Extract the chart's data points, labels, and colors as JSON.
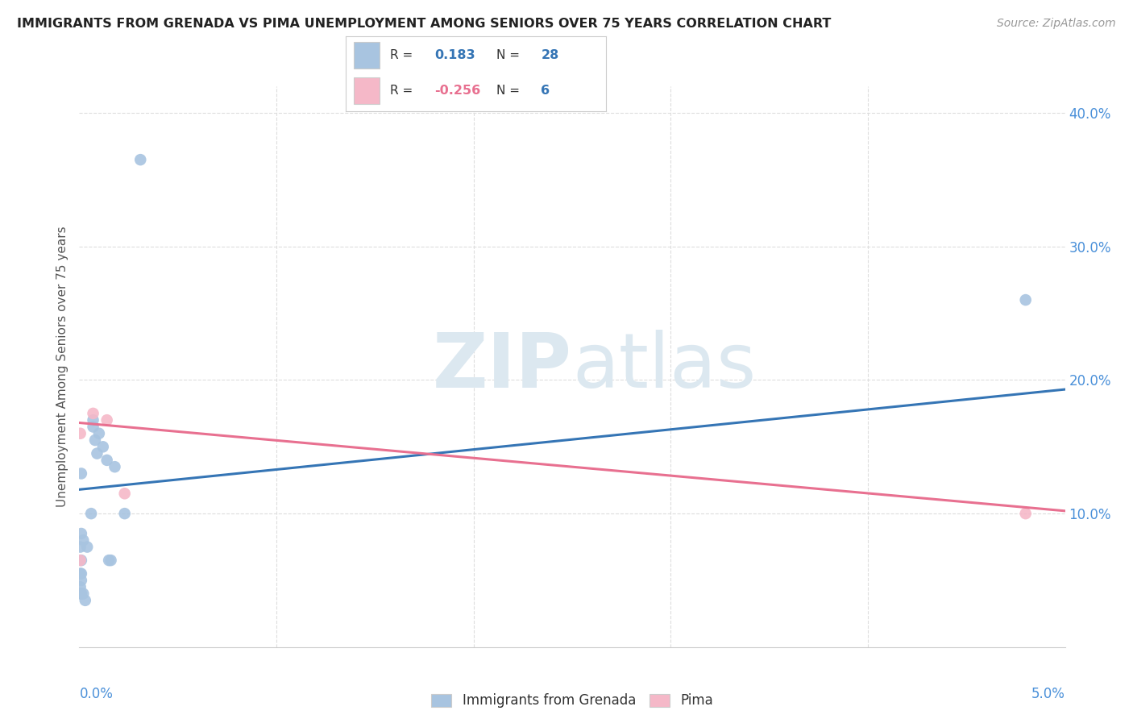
{
  "title": "IMMIGRANTS FROM GRENADA VS PIMA UNEMPLOYMENT AMONG SENIORS OVER 75 YEARS CORRELATION CHART",
  "source": "Source: ZipAtlas.com",
  "ylabel": "Unemployment Among Seniors over 75 years",
  "xlim": [
    0.0,
    0.05
  ],
  "ylim": [
    0.0,
    0.42
  ],
  "background_color": "#ffffff",
  "blue_scatter_x": [
    5e-05,
    5e-05,
    5e-05,
    8e-05,
    0.0001,
    0.0001,
    0.0001,
    0.0001,
    0.0001,
    0.0001,
    0.0002,
    0.0002,
    0.0003,
    0.0004,
    0.0006,
    0.0007,
    0.0007,
    0.0008,
    0.0009,
    0.001,
    0.0012,
    0.0014,
    0.0015,
    0.0016,
    0.0018,
    0.0023,
    0.0031,
    0.048
  ],
  "blue_scatter_y": [
    0.075,
    0.055,
    0.045,
    0.04,
    0.13,
    0.085,
    0.065,
    0.055,
    0.05,
    0.04,
    0.08,
    0.04,
    0.035,
    0.075,
    0.1,
    0.165,
    0.17,
    0.155,
    0.145,
    0.16,
    0.15,
    0.14,
    0.065,
    0.065,
    0.135,
    0.1,
    0.365,
    0.26
  ],
  "pink_scatter_x": [
    5e-05,
    5e-05,
    0.0007,
    0.0014,
    0.0023,
    0.048
  ],
  "pink_scatter_y": [
    0.16,
    0.065,
    0.175,
    0.17,
    0.115,
    0.1
  ],
  "blue_color": "#a8c4e0",
  "blue_line_color": "#3575b5",
  "blue_line_x": [
    0.0,
    0.05
  ],
  "blue_line_y": [
    0.118,
    0.193
  ],
  "pink_color": "#f5b8c8",
  "pink_line_color": "#e87090",
  "pink_line_x": [
    0.0,
    0.05
  ],
  "pink_line_y": [
    0.168,
    0.102
  ],
  "blue_R": "0.183",
  "blue_N": "28",
  "pink_R": "-0.256",
  "pink_N": "6",
  "legend_label1": "Immigrants from Grenada",
  "legend_label2": "Pima",
  "ytick_vals": [
    0.1,
    0.2,
    0.3,
    0.4
  ],
  "ytick_labels": [
    "10.0%",
    "20.0%",
    "30.0%",
    "40.0%"
  ],
  "xtick_vals": [
    0.0,
    0.01,
    0.02,
    0.03,
    0.04,
    0.05
  ],
  "grid_color": "#dddddd",
  "axis_color": "#cccccc",
  "tick_label_color": "#4a90d9",
  "title_color": "#222222",
  "source_color": "#999999",
  "ylabel_color": "#555555",
  "watermark_color": "#dce8f0",
  "legend_text_color": "#333333",
  "legend_border_color": "#cccccc",
  "legend_val_color_blue": "#3575b5",
  "legend_val_color_pink": "#e87090",
  "legend_n_color": "#3575b5"
}
